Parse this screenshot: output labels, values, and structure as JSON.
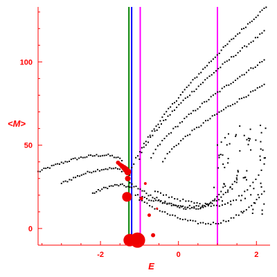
{
  "chart_data": {
    "type": "scatter",
    "title": "",
    "xlabel": "E",
    "ylabel": "<M>",
    "xlim": [
      -3.6,
      2.35
    ],
    "ylim": [
      -10,
      133
    ],
    "x_ticks": [
      -2,
      0,
      2
    ],
    "y_ticks": [
      0,
      50,
      100
    ],
    "grid": false,
    "colors": {
      "axis": "#ff0000",
      "points": "#000000",
      "highlight": "#ee0000",
      "line_green": "#008000",
      "line_blue": "#0000ff",
      "line_magenta": "#ff00ff"
    },
    "vertical_lines": [
      {
        "x": -1.27,
        "color": "#008000"
      },
      {
        "x": -1.2,
        "color": "#0000ff"
      },
      {
        "x": -0.98,
        "color": "#ff00ff"
      },
      {
        "x": 1.0,
        "color": "#ff00ff"
      }
    ],
    "curves": [
      {
        "x0": -3.6,
        "x1": -1.45,
        "samples": 44,
        "kind": "arc",
        "y0": 34,
        "ymax": 44,
        "xpeak": -1.9,
        "ytail": 41
      },
      {
        "x0": -3.0,
        "x1": -1.3,
        "samples": 34,
        "kind": "arc",
        "y0": 27,
        "ymax": 36,
        "xpeak": -1.7,
        "ytail": 33
      },
      {
        "x0": -2.2,
        "x1": -1.2,
        "samples": 22,
        "kind": "arc",
        "y0": 21,
        "ymax": 26,
        "xpeak": -1.5,
        "ytail": 24
      },
      {
        "x0": -1.25,
        "x1": 2.25,
        "samples": 68,
        "kind": "rise",
        "y0": 32,
        "y1": 133
      },
      {
        "x0": -1.0,
        "x1": 2.2,
        "samples": 58,
        "kind": "rise",
        "y0": 42,
        "y1": 118
      },
      {
        "x0": -0.7,
        "x1": 2.2,
        "samples": 52,
        "kind": "rise",
        "y0": 42,
        "y1": 101
      },
      {
        "x0": -0.4,
        "x1": 2.2,
        "samples": 46,
        "kind": "rise",
        "y0": 40,
        "y1": 86
      },
      {
        "x0": -1.3,
        "x1": 1.2,
        "samples": 48,
        "kind": "valley",
        "y0": 28,
        "ymin": 12,
        "xmin": 0.4,
        "y1": 26
      },
      {
        "x0": -1.1,
        "x1": 1.5,
        "samples": 46,
        "kind": "valley",
        "y0": 20,
        "ymin": 13,
        "xmin": 0.5,
        "y1": 30
      },
      {
        "x0": -1.0,
        "x1": 2.2,
        "samples": 50,
        "kind": "valley",
        "y0": 17,
        "ymin": 3,
        "xmin": 0.8,
        "y1": 22
      },
      {
        "x0": -0.6,
        "x1": 2.2,
        "samples": 40,
        "kind": "valley",
        "y0": 22,
        "ymin": 14,
        "xmin": 1.0,
        "y1": 38
      }
    ],
    "scatter_cloud": {
      "x0": 0.9,
      "x1": 2.25,
      "y0": 8,
      "y1": 62,
      "count": 70
    },
    "highlight_points": [
      {
        "x": -1.55,
        "y": 39.5,
        "size": 3
      },
      {
        "x": -1.5,
        "y": 38.5,
        "size": 3
      },
      {
        "x": -1.45,
        "y": 37.5,
        "size": 3.5
      },
      {
        "x": -1.4,
        "y": 36.5,
        "size": 4
      },
      {
        "x": -1.35,
        "y": 35.5,
        "size": 4.5
      },
      {
        "x": -1.3,
        "y": 34,
        "size": 5
      },
      {
        "x": -1.3,
        "y": 30,
        "size": 4
      },
      {
        "x": -1.32,
        "y": 19,
        "size": 7
      },
      {
        "x": -1.25,
        "y": -7,
        "size": 9
      },
      {
        "x": -1.05,
        "y": -7,
        "size": 11
      },
      {
        "x": -0.95,
        "y": 18,
        "size": 2.5
      },
      {
        "x": -0.85,
        "y": 27,
        "size": 2
      },
      {
        "x": -0.75,
        "y": 8,
        "size": 2.5
      },
      {
        "x": -0.65,
        "y": -4,
        "size": 3
      },
      {
        "x": -0.55,
        "y": 12,
        "size": 1.5
      }
    ]
  }
}
